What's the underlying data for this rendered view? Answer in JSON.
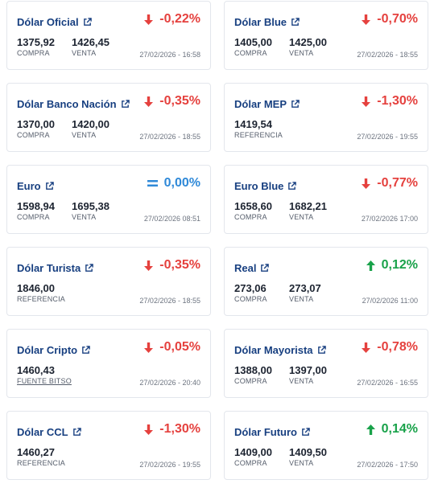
{
  "cards": [
    {
      "name": "Dólar Oficial",
      "direction": "down",
      "variation": "-0,22%",
      "values": [
        {
          "num": "1375,92",
          "label": "COMPRA"
        },
        {
          "num": "1426,45",
          "label": "VENTA"
        }
      ],
      "date": "27/02/2026 - 16:58"
    },
    {
      "name": "Dólar Blue",
      "direction": "down",
      "variation": "-0,70%",
      "values": [
        {
          "num": "1405,00",
          "label": "COMPRA"
        },
        {
          "num": "1425,00",
          "label": "VENTA"
        }
      ],
      "date": "27/02/2026 - 18:55"
    },
    {
      "name": "Dólar Banco Nación",
      "direction": "down",
      "variation": "-0,35%",
      "values": [
        {
          "num": "1370,00",
          "label": "COMPRA"
        },
        {
          "num": "1420,00",
          "label": "VENTA"
        }
      ],
      "date": "27/02/2026 - 18:55"
    },
    {
      "name": "Dólar MEP",
      "direction": "down",
      "variation": "-1,30%",
      "values": [
        {
          "num": "1419,54",
          "label": "REFERENCIA"
        }
      ],
      "date": "27/02/2026 - 19:55"
    },
    {
      "name": "Euro",
      "direction": "flat",
      "variation": "0,00%",
      "values": [
        {
          "num": "1598,94",
          "label": "COMPRA"
        },
        {
          "num": "1695,38",
          "label": "VENTA"
        }
      ],
      "date": "27/02/2026 08:51"
    },
    {
      "name": "Euro Blue",
      "direction": "down",
      "variation": "-0,77%",
      "values": [
        {
          "num": "1658,60",
          "label": "COMPRA"
        },
        {
          "num": "1682,21",
          "label": "VENTA"
        }
      ],
      "date": "27/02/2026 17:00"
    },
    {
      "name": "Dólar Turista",
      "direction": "down",
      "variation": "-0,35%",
      "values": [
        {
          "num": "1846,00",
          "label": "REFERENCIA"
        }
      ],
      "date": "27/02/2026 - 18:55"
    },
    {
      "name": "Real",
      "direction": "up",
      "variation": "0,12%",
      "values": [
        {
          "num": "273,06",
          "label": "COMPRA"
        },
        {
          "num": "273,07",
          "label": "VENTA"
        }
      ],
      "date": "27/02/2026 11:00"
    },
    {
      "name": "Dólar Cripto",
      "direction": "down",
      "variation": "-0,05%",
      "values": [
        {
          "num": "1460,43",
          "label": "FUENTE BITSO",
          "link": true
        }
      ],
      "date": "27/02/2026 - 20:40"
    },
    {
      "name": "Dólar Mayorista",
      "direction": "down",
      "variation": "-0,78%",
      "values": [
        {
          "num": "1388,00",
          "label": "COMPRA"
        },
        {
          "num": "1397,00",
          "label": "VENTA"
        }
      ],
      "date": "27/02/2026 - 16:55"
    },
    {
      "name": "Dólar CCL",
      "direction": "down",
      "variation": "-1,30%",
      "values": [
        {
          "num": "1460,27",
          "label": "REFERENCIA"
        }
      ],
      "date": "27/02/2026 - 19:55"
    },
    {
      "name": "Dólar Futuro",
      "direction": "up",
      "variation": "0,14%",
      "values": [
        {
          "num": "1409,00",
          "label": "COMPRA"
        },
        {
          "num": "1409,50",
          "label": "VENTA"
        }
      ],
      "date": "27/02/2026 - 17:50"
    }
  ],
  "colors": {
    "title": "#173f80",
    "down": "#e5413e",
    "up": "#19a24a",
    "flat": "#2f89d8",
    "border": "#e3e6ec"
  },
  "icons": {
    "external_link": "external-link-icon",
    "down": "arrow-down-icon",
    "up": "arrow-up-icon",
    "flat": "equals-icon"
  }
}
